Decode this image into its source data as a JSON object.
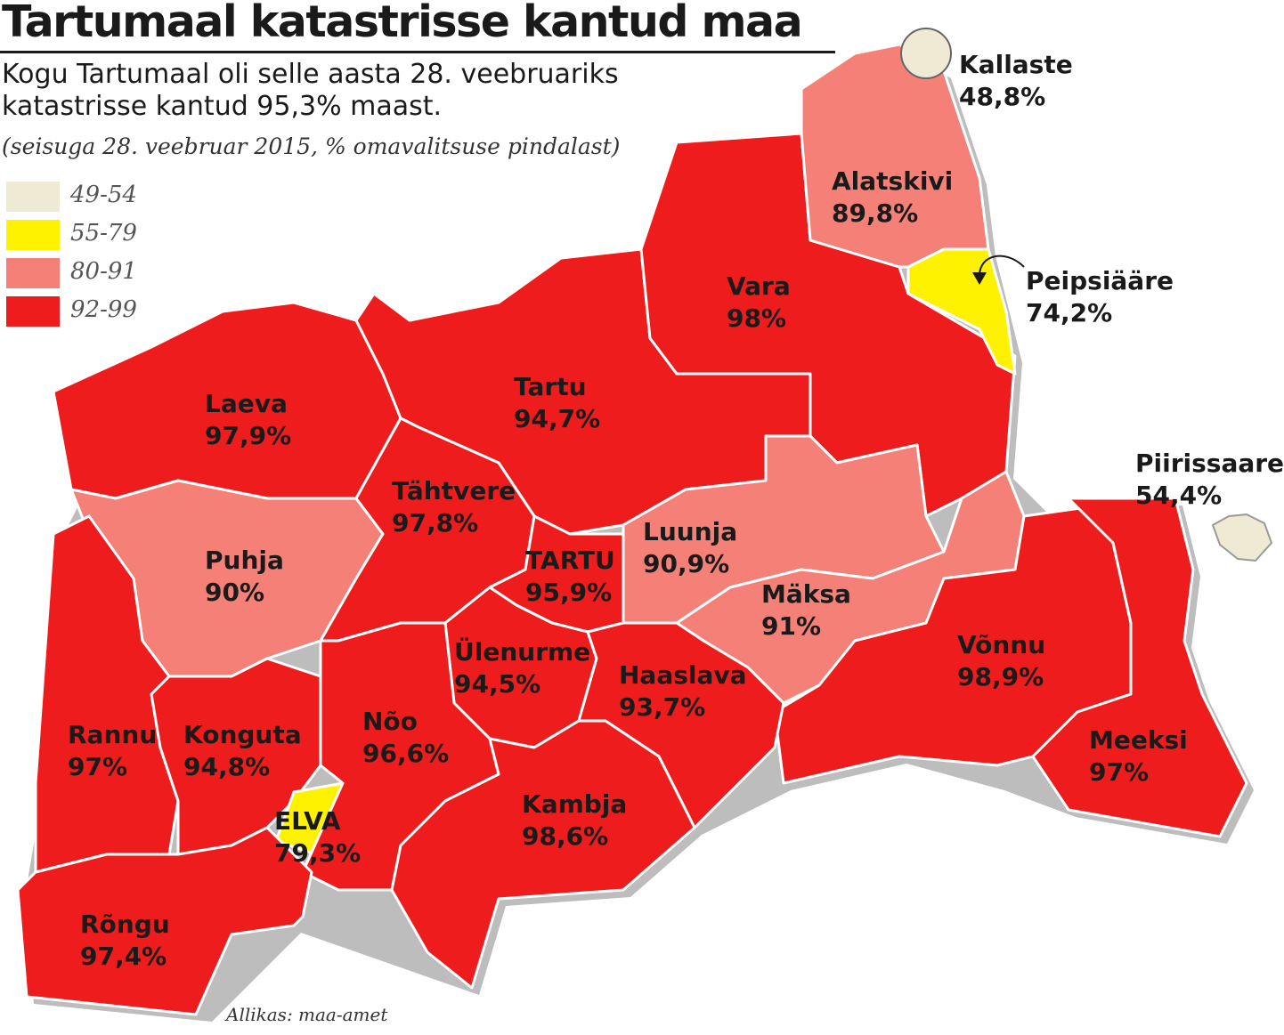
{
  "title": "Tartumaal katastrisse kantud maa",
  "subtitle": [
    "Kogu Tartumaal oli selle aasta 28. veebruariks",
    "katastrisse kantud 95,3% maast."
  ],
  "note": "(seisuga 28. veebruar 2015, % omavalitsuse pindalast)",
  "legend": [
    {
      "label": "49-54",
      "color": "#efead3"
    },
    {
      "label": "55-79",
      "color": "#fff200"
    },
    {
      "label": "80-91",
      "color": "#f48078"
    },
    {
      "label": "92-99",
      "color": "#ee1c1c"
    }
  ],
  "regions": [
    {
      "id": "laeva",
      "name": "Laeva",
      "value": "97,9%",
      "class": "92-99"
    },
    {
      "id": "tartu-vald",
      "name": "Tartu",
      "value": "94,7%",
      "class": "92-99"
    },
    {
      "id": "vara",
      "name": "Vara",
      "value": "98%",
      "class": "92-99"
    },
    {
      "id": "alatskivi",
      "name": "Alatskivi",
      "value": "89,8%",
      "class": "80-91"
    },
    {
      "id": "kallaste",
      "name": "Kallaste",
      "value": "48,8%",
      "class": "49-54"
    },
    {
      "id": "peipsiaare",
      "name": "Peipsiääre",
      "value": "74,2%",
      "class": "55-79"
    },
    {
      "id": "piirissaare",
      "name": "Piirissaare",
      "value": "54,4%",
      "class": "49-54"
    },
    {
      "id": "puhja",
      "name": "Puhja",
      "value": "90%",
      "class": "80-91"
    },
    {
      "id": "tahtvere",
      "name": "Tähtvere",
      "value": "97,8%",
      "class": "92-99"
    },
    {
      "id": "tartu-linn",
      "name": "TARTU",
      "value": "95,9%",
      "class": "92-99"
    },
    {
      "id": "luunja",
      "name": "Luunja",
      "value": "90,9%",
      "class": "80-91"
    },
    {
      "id": "maksa",
      "name": "Mäksa",
      "value": "91%",
      "class": "80-91"
    },
    {
      "id": "vonnu",
      "name": "Võnnu",
      "value": "98,9%",
      "class": "92-99"
    },
    {
      "id": "meeksi",
      "name": "Meeksi",
      "value": "97%",
      "class": "92-99"
    },
    {
      "id": "rannu",
      "name": "Rannu",
      "value": "97%",
      "class": "92-99"
    },
    {
      "id": "konguta",
      "name": "Konguta",
      "value": "94,8%",
      "class": "92-99"
    },
    {
      "id": "ulenurme",
      "name": "Ülenurme",
      "value": "94,5%",
      "class": "92-99"
    },
    {
      "id": "haaslava",
      "name": "Haaslava",
      "value": "93,7%",
      "class": "92-99"
    },
    {
      "id": "noo",
      "name": "Nõo",
      "value": "96,6%",
      "class": "92-99"
    },
    {
      "id": "elva",
      "name": "ELVA",
      "value": "79,3%",
      "class": "55-79"
    },
    {
      "id": "kambja",
      "name": "Kambja",
      "value": "98,6%",
      "class": "92-99"
    },
    {
      "id": "rongu",
      "name": "Rõngu",
      "value": "97,4%",
      "class": "92-99"
    }
  ],
  "source": "Allikas: maa-amet"
}
